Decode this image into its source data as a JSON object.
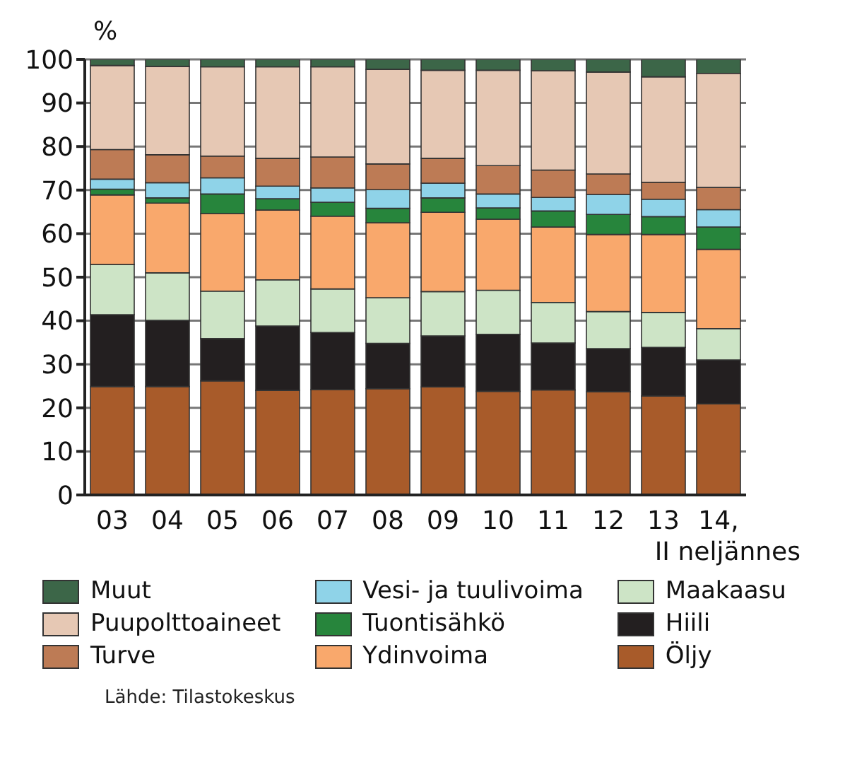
{
  "chart_data": {
    "type": "bar",
    "stacked": true,
    "ylabel": "%",
    "categories": [
      "03",
      "04",
      "05",
      "06",
      "07",
      "08",
      "09",
      "10",
      "11",
      "12",
      "13",
      "14, II neljännes"
    ],
    "series": [
      {
        "name": "Öljy",
        "color": "#a85b2a",
        "values": [
          24.9,
          24.9,
          26.2,
          24.0,
          24.2,
          24.4,
          24.8,
          23.8,
          24.1,
          23.7,
          22.7,
          20.9
        ]
      },
      {
        "name": "Hiili",
        "color": "#231f20",
        "values": [
          16.5,
          15.2,
          9.7,
          14.8,
          13.1,
          10.4,
          11.7,
          13.1,
          10.8,
          9.9,
          11.2,
          10.1
        ]
      },
      {
        "name": "Maakaasu",
        "color": "#cde4c6",
        "values": [
          11.5,
          10.9,
          10.9,
          10.6,
          10.0,
          10.5,
          10.2,
          10.1,
          9.3,
          8.5,
          8.0,
          7.2
        ]
      },
      {
        "name": "Ydinvoima",
        "color": "#f9a86c",
        "values": [
          16.0,
          16.0,
          17.8,
          16.0,
          16.7,
          17.2,
          18.2,
          16.3,
          17.3,
          17.7,
          17.9,
          18.2
        ]
      },
      {
        "name": "Tuontisähkö",
        "color": "#27853c",
        "values": [
          1.3,
          1.2,
          4.5,
          2.6,
          3.2,
          3.3,
          3.3,
          2.6,
          3.7,
          4.6,
          4.1,
          5.1
        ]
      },
      {
        "name": "Vesi- ja tuulivoima",
        "color": "#8fd3e8",
        "values": [
          2.3,
          3.5,
          3.7,
          2.9,
          3.3,
          4.3,
          3.4,
          3.2,
          3.1,
          4.6,
          4.0,
          4.0
        ]
      },
      {
        "name": "Turve",
        "color": "#bd7b55",
        "values": [
          6.8,
          6.4,
          5.0,
          6.4,
          7.1,
          5.9,
          5.7,
          6.5,
          6.3,
          4.7,
          3.9,
          5.1
        ]
      },
      {
        "name": "Puupolttoaineet",
        "color": "#e6c8b4",
        "values": [
          19.3,
          20.3,
          20.5,
          21.0,
          20.7,
          21.7,
          20.2,
          21.9,
          22.8,
          23.4,
          24.2,
          26.2
        ]
      },
      {
        "name": "Muut",
        "color": "#3c6648",
        "values": [
          1.4,
          1.6,
          1.7,
          1.7,
          1.7,
          2.3,
          2.5,
          2.5,
          2.6,
          2.9,
          4.0,
          3.2
        ]
      }
    ],
    "ylim": [
      0,
      100
    ],
    "yticks": [
      0,
      10,
      20,
      30,
      40,
      50,
      60,
      70,
      80,
      90,
      100
    ],
    "grid": "y",
    "legend": "bottom",
    "annotations": [
      "Lähde: Tilastokeskus"
    ]
  }
}
